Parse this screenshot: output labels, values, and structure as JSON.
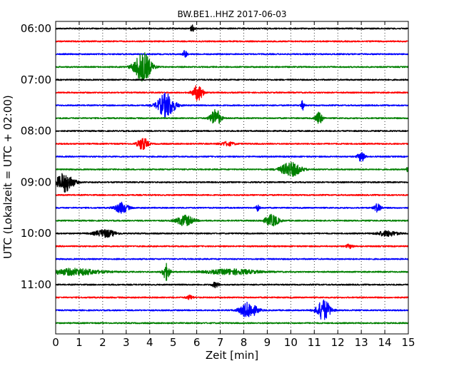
{
  "chart_data": {
    "type": "line",
    "title": "BW.BE1..HHZ 2017-06-03",
    "xlabel": "Zeit  [min]",
    "ylabel": "UTC (Lokalzeit = UTC + 02:00)",
    "xlim": [
      0,
      15
    ],
    "x_ticks": [
      "0",
      "1",
      "2",
      "3",
      "4",
      "5",
      "6",
      "7",
      "8",
      "9",
      "10",
      "11",
      "12",
      "13",
      "14",
      "15"
    ],
    "y_tick_labels": [
      "06:00",
      "07:00",
      "08:00",
      "09:00",
      "10:00",
      "11:00"
    ],
    "grid_x": true,
    "trace_colors": [
      "#000000",
      "#ff0000",
      "#0000ff",
      "#008000"
    ],
    "traces_start": "06:00",
    "trace_interval_min": 15,
    "trace_count": 24,
    "events": [
      {
        "trace": 0,
        "t": 5.8,
        "amp": 0.5,
        "dur": 0.12
      },
      {
        "trace": 2,
        "t": 5.5,
        "amp": 0.6,
        "dur": 0.12
      },
      {
        "trace": 3,
        "t": 3.7,
        "amp": 2.3,
        "dur": 0.5
      },
      {
        "trace": 5,
        "t": 6.05,
        "amp": 1.2,
        "dur": 0.3
      },
      {
        "trace": 6,
        "t": 4.7,
        "amp": 1.9,
        "dur": 0.5
      },
      {
        "trace": 6,
        "t": 10.5,
        "amp": 0.7,
        "dur": 0.1
      },
      {
        "trace": 7,
        "t": 6.8,
        "amp": 1.4,
        "dur": 0.3
      },
      {
        "trace": 7,
        "t": 11.2,
        "amp": 1.0,
        "dur": 0.2
      },
      {
        "trace": 9,
        "t": 3.7,
        "amp": 1.0,
        "dur": 0.3
      },
      {
        "trace": 9,
        "t": 7.3,
        "amp": 0.3,
        "dur": 0.4
      },
      {
        "trace": 10,
        "t": 13.0,
        "amp": 0.8,
        "dur": 0.2
      },
      {
        "trace": 11,
        "t": 10.0,
        "amp": 1.1,
        "dur": 0.6
      },
      {
        "trace": 11,
        "t": 15.0,
        "amp": 0.5,
        "dur": 0.1
      },
      {
        "trace": 12,
        "t": 0.4,
        "amp": 1.5,
        "dur": 0.5
      },
      {
        "trace": 14,
        "t": 2.8,
        "amp": 0.8,
        "dur": 0.4
      },
      {
        "trace": 14,
        "t": 8.6,
        "amp": 0.6,
        "dur": 0.1
      },
      {
        "trace": 14,
        "t": 13.7,
        "amp": 0.7,
        "dur": 0.2
      },
      {
        "trace": 15,
        "t": 5.5,
        "amp": 0.8,
        "dur": 0.5
      },
      {
        "trace": 15,
        "t": 9.2,
        "amp": 0.9,
        "dur": 0.4
      },
      {
        "trace": 16,
        "t": 2.1,
        "amp": 0.6,
        "dur": 0.6
      },
      {
        "trace": 16,
        "t": 14.1,
        "amp": 0.4,
        "dur": 0.6
      },
      {
        "trace": 17,
        "t": 12.5,
        "amp": 0.3,
        "dur": 0.2
      },
      {
        "trace": 19,
        "t": 0.8,
        "amp": 0.5,
        "dur": 1.5
      },
      {
        "trace": 19,
        "t": 4.7,
        "amp": 1.3,
        "dur": 0.2
      },
      {
        "trace": 19,
        "t": 7.5,
        "amp": 0.4,
        "dur": 1.5
      },
      {
        "trace": 20,
        "t": 6.8,
        "amp": 0.4,
        "dur": 0.2
      },
      {
        "trace": 21,
        "t": 5.7,
        "amp": 0.3,
        "dur": 0.2
      },
      {
        "trace": 22,
        "t": 8.2,
        "amp": 1.2,
        "dur": 0.5
      },
      {
        "trace": 22,
        "t": 11.4,
        "amp": 1.6,
        "dur": 0.4
      }
    ]
  }
}
